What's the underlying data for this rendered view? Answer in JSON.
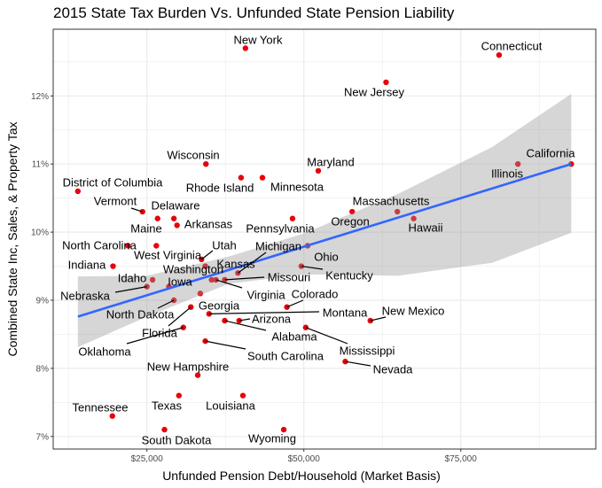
{
  "chart_data": {
    "type": "scatter",
    "title": "2015 State Tax Burden Vs. Unfunded State Pension Liability",
    "xlabel": "Unfunded Pension Debt/Household (Market Basis)",
    "ylabel": "Combined State Inc, Sales, & Property Tax",
    "xlim": [
      10000,
      96000
    ],
    "ylim": [
      6.83,
      13.0
    ],
    "x_ticks": [
      25000,
      50000,
      75000
    ],
    "x_tick_labels": [
      "$25,000",
      "$50,000",
      "$75,000"
    ],
    "y_ticks": [
      7,
      8,
      9,
      10,
      11,
      12
    ],
    "y_tick_labels": [
      "7%",
      "8%",
      "9%",
      "10%",
      "11%",
      "12%"
    ],
    "grid": true,
    "colors": {
      "points": "#e8000b",
      "trend": "#3366ff",
      "band": "#999999",
      "grid": "#ebebeb"
    },
    "points": [
      {
        "label": "New York",
        "x": 40700,
        "y": 12.7
      },
      {
        "label": "Connecticut",
        "x": 81100,
        "y": 12.6
      },
      {
        "label": "New Jersey",
        "x": 63100,
        "y": 12.2
      },
      {
        "label": "Wisconsin",
        "x": 34400,
        "y": 11.0
      },
      {
        "label": "Illinois",
        "x": 84100,
        "y": 11.0
      },
      {
        "label": "California",
        "x": 92600,
        "y": 11.0
      },
      {
        "label": "Maryland",
        "x": 52300,
        "y": 10.9
      },
      {
        "label": "Rhode Island",
        "x": 40000,
        "y": 10.8
      },
      {
        "label": "Minnesota",
        "x": 43400,
        "y": 10.8
      },
      {
        "label": "District of Columbia",
        "x": 14000,
        "y": 10.6
      },
      {
        "label": "Vermont",
        "x": 24300,
        "y": 10.3
      },
      {
        "label": "Oregon",
        "x": 57700,
        "y": 10.3
      },
      {
        "label": "Massachusetts",
        "x": 64900,
        "y": 10.3
      },
      {
        "label": "Maine",
        "x": 26700,
        "y": 10.2
      },
      {
        "label": "Delaware",
        "x": 29300,
        "y": 10.2
      },
      {
        "label": "Pennsylvania",
        "x": 48200,
        "y": 10.2
      },
      {
        "label": "Hawaii",
        "x": 67500,
        "y": 10.2
      },
      {
        "label": "Arkansas",
        "x": 29800,
        "y": 10.1
      },
      {
        "label": "North Carolina",
        "x": 22000,
        "y": 9.8
      },
      {
        "label": "West Virginia",
        "x": 26500,
        "y": 9.8
      },
      {
        "label": "Ohio",
        "x": 50600,
        "y": 9.8
      },
      {
        "label": "Utah",
        "x": 33700,
        "y": 9.6
      },
      {
        "label": "Indiana",
        "x": 19600,
        "y": 9.5
      },
      {
        "label": "Kansas",
        "x": 34300,
        "y": 9.5
      },
      {
        "label": "Kentucky",
        "x": 49600,
        "y": 9.5
      },
      {
        "label": "Michigan",
        "x": 39500,
        "y": 9.4
      },
      {
        "label": "Idaho",
        "x": 25900,
        "y": 9.3
      },
      {
        "label": "Washington",
        "x": 35300,
        "y": 9.3
      },
      {
        "label": "Virginia",
        "x": 36000,
        "y": 9.3
      },
      {
        "label": "Missouri",
        "x": 37400,
        "y": 9.3
      },
      {
        "label": "Nebraska",
        "x": 25000,
        "y": 9.2
      },
      {
        "label": "Iowa",
        "x": 28500,
        "y": 9.2
      },
      {
        "label": "Georgia",
        "x": 33500,
        "y": 9.1
      },
      {
        "label": "North Dakota",
        "x": 29300,
        "y": 9.0
      },
      {
        "label": "Florida",
        "x": 32000,
        "y": 8.9
      },
      {
        "label": "Colorado",
        "x": 47300,
        "y": 8.9
      },
      {
        "label": "Montana",
        "x": 34900,
        "y": 8.8
      },
      {
        "label": "Alabama",
        "x": 37400,
        "y": 8.7
      },
      {
        "label": "Arizona",
        "x": 39700,
        "y": 8.7
      },
      {
        "label": "New Mexico",
        "x": 60600,
        "y": 8.7
      },
      {
        "label": "Oklahoma",
        "x": 30800,
        "y": 8.6
      },
      {
        "label": "Mississippi",
        "x": 50300,
        "y": 8.6
      },
      {
        "label": "South Carolina",
        "x": 34300,
        "y": 8.4
      },
      {
        "label": "Nevada",
        "x": 56600,
        "y": 8.1
      },
      {
        "label": "New Hampshire",
        "x": 33100,
        "y": 7.9
      },
      {
        "label": "Texas",
        "x": 30100,
        "y": 7.6
      },
      {
        "label": "Louisiana",
        "x": 40300,
        "y": 7.6
      },
      {
        "label": "Tennessee",
        "x": 19500,
        "y": 7.3
      },
      {
        "label": "South Dakota",
        "x": 27800,
        "y": 7.1
      },
      {
        "label": "Wyoming",
        "x": 46800,
        "y": 7.1
      }
    ],
    "trend": {
      "x": [
        14000,
        92600
      ],
      "y": [
        8.76,
        11.0
      ]
    },
    "band": {
      "x": [
        14000,
        25000,
        38000,
        50000,
        65000,
        80000,
        92600
      ],
      "upper": [
        9.35,
        9.36,
        9.64,
        9.98,
        10.56,
        11.25,
        12.03
      ],
      "lower": [
        8.31,
        8.76,
        9.24,
        9.38,
        9.36,
        9.55,
        9.99
      ]
    }
  }
}
